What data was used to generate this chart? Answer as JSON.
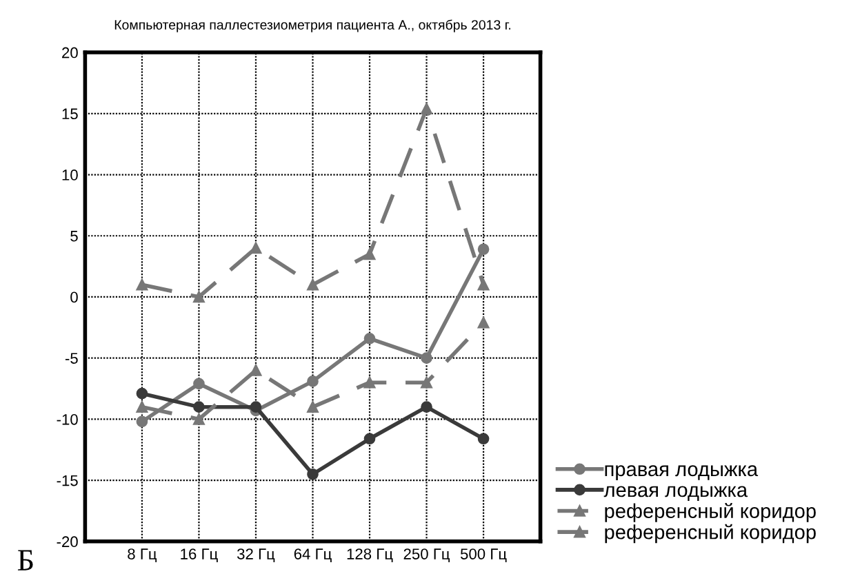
{
  "chart_data": {
    "type": "line",
    "title": "Компьютерная паллестезиометрия пациента А., октябрь 2013 г.",
    "categories": [
      "8 Гц",
      "16 Гц",
      "32 Гц",
      "64 Гц",
      "128 Гц",
      "250 Гц",
      "500 Гц"
    ],
    "series": [
      {
        "name": "правая лодыжка",
        "color": "#777777",
        "marker": "circle",
        "line_style": "solid",
        "values": [
          -10.2,
          -7.1,
          -9.3,
          -6.9,
          -3.4,
          -5,
          3.9
        ]
      },
      {
        "name": "левая лодыжка",
        "color": "#3a3a3a",
        "marker": "circle",
        "line_style": "solid",
        "values": [
          -7.9,
          -9,
          -9,
          -14.5,
          -11.6,
          -9,
          -11.6
        ]
      },
      {
        "name": "референсный коридор",
        "color": "#777777",
        "marker": "triangle",
        "line_style": "dashed",
        "values": [
          -9,
          -10,
          -6,
          -9,
          -7,
          -7,
          -2.1
        ]
      },
      {
        "name": "референсный коридор",
        "color": "#777777",
        "marker": "triangle",
        "line_style": "dashed",
        "values": [
          1,
          0,
          4,
          1,
          3.5,
          15.4,
          1
        ]
      }
    ],
    "ylim": [
      -20,
      20
    ],
    "yticks": [
      -20,
      -15,
      -10,
      -5,
      0,
      5,
      10,
      15,
      20
    ],
    "grid": true,
    "legend": "bottom right",
    "annotations": [
      "Б"
    ]
  }
}
